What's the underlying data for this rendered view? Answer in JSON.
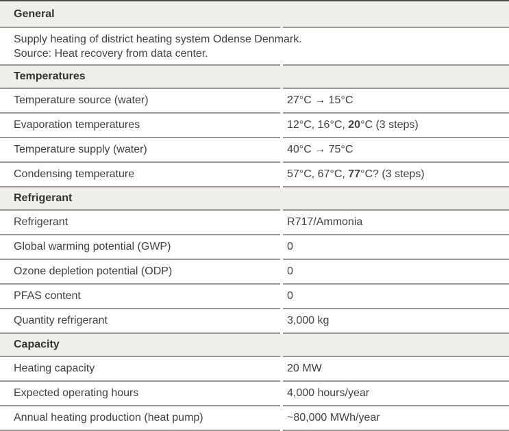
{
  "document": {
    "colors": {
      "header_bg": "#efeeeb",
      "rule": "#9c9690",
      "top_rule": "#4f4b47",
      "text": "#403f3d"
    },
    "sections": [
      {
        "header": "General",
        "rows": [
          {
            "type": "text",
            "lines": [
              "Supply heating of district heating system Odense Denmark.",
              "Source: Heat recovery from data center."
            ]
          }
        ]
      },
      {
        "header": "Temperatures",
        "rows": [
          {
            "type": "kv",
            "label": "Temperature source (water)",
            "value": [
              {
                "text": "27°C → 15°C",
                "bold": false
              }
            ]
          },
          {
            "type": "kv",
            "label": "Evaporation temperatures",
            "value": [
              {
                "text": "12°C, 16°C, ",
                "bold": false
              },
              {
                "text": "20",
                "bold": true
              },
              {
                "text": "°C (3 steps)",
                "bold": false
              }
            ]
          },
          {
            "type": "kv",
            "label": "Temperature supply (water)",
            "value": [
              {
                "text": "40°C → 75°C",
                "bold": false
              }
            ]
          },
          {
            "type": "kv",
            "label": "Condensing temperature",
            "value": [
              {
                "text": "57°C, 67°C, ",
                "bold": false
              },
              {
                "text": "77",
                "bold": true
              },
              {
                "text": "°C? (3 steps)",
                "bold": false
              }
            ]
          }
        ]
      },
      {
        "header": "Refrigerant",
        "rows": [
          {
            "type": "kv",
            "label": "Refrigerant",
            "value": [
              {
                "text": "R717/Ammonia",
                "bold": false
              }
            ]
          },
          {
            "type": "kv",
            "label": "Global warming potential (GWP)",
            "value": [
              {
                "text": "0",
                "bold": false
              }
            ]
          },
          {
            "type": "kv",
            "label": "Ozone depletion potential (ODP)",
            "value": [
              {
                "text": "0",
                "bold": false
              }
            ]
          },
          {
            "type": "kv",
            "label": "PFAS content",
            "value": [
              {
                "text": "0",
                "bold": false
              }
            ]
          },
          {
            "type": "kv",
            "label": "Quantity refrigerant",
            "value": [
              {
                "text": "3,000 kg",
                "bold": false
              }
            ]
          }
        ]
      },
      {
        "header": "Capacity",
        "rows": [
          {
            "type": "kv",
            "label": "Heating capacity",
            "value": [
              {
                "text": "20 MW",
                "bold": false
              }
            ]
          },
          {
            "type": "kv",
            "label": "Expected operating hours",
            "value": [
              {
                "text": "4,000 hours/year",
                "bold": false
              }
            ]
          },
          {
            "type": "kv",
            "label": "Annual heating production (heat pump)",
            "value": [
              {
                "text": "~80,000 MWh/year",
                "bold": false
              }
            ]
          }
        ]
      }
    ]
  }
}
